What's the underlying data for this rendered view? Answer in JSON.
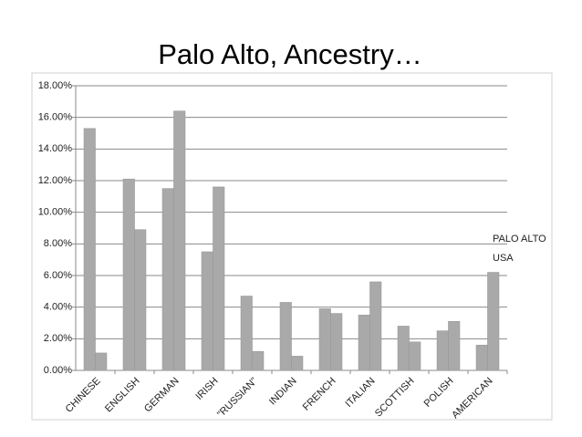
{
  "chart_data": {
    "type": "bar",
    "title": "Palo Alto, Ancestry…",
    "categories": [
      "CHINESE",
      "ENGLISH",
      "GERMAN",
      "IRISH",
      "\"RUSSIAN\"",
      "INDIAN",
      "FRENCH",
      "ITALIAN",
      "SCOTTISH",
      "POLISH",
      "AMERICAN"
    ],
    "series": [
      {
        "name": "PALO ALTO",
        "color": "#a9a9a9",
        "values": [
          15.3,
          12.1,
          11.5,
          7.5,
          4.7,
          4.3,
          3.9,
          3.5,
          2.8,
          2.5,
          1.6
        ]
      },
      {
        "name": "USA",
        "color": "#a9a9a9",
        "values": [
          1.1,
          8.9,
          16.4,
          11.6,
          1.2,
          0.9,
          3.6,
          5.6,
          1.8,
          3.1,
          6.2
        ]
      }
    ],
    "ylim": [
      0,
      18
    ],
    "yticks": [
      {
        "value": 0,
        "label": "0.00%"
      },
      {
        "value": 2,
        "label": "2.00%"
      },
      {
        "value": 4,
        "label": "4.00%"
      },
      {
        "value": 6,
        "label": "6.00%"
      },
      {
        "value": 8,
        "label": "8.00%"
      },
      {
        "value": 10,
        "label": "10.00%"
      },
      {
        "value": 12,
        "label": "12.00%"
      },
      {
        "value": 14,
        "label": "14.00%"
      },
      {
        "value": 16,
        "label": "16.00%"
      },
      {
        "value": 18,
        "label": "18.00%"
      }
    ],
    "grid": true,
    "legend": "right"
  }
}
